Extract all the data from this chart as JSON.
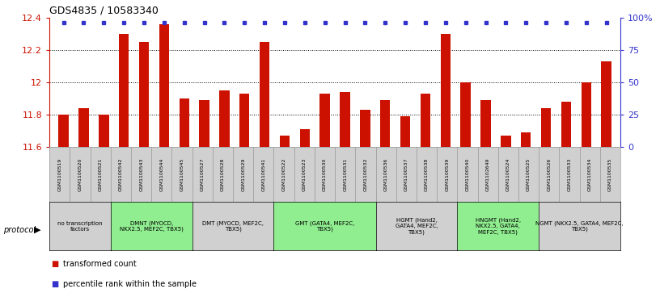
{
  "title": "GDS4835 / 10583340",
  "samples": [
    "GSM1100519",
    "GSM1100520",
    "GSM1100521",
    "GSM1100542",
    "GSM1100543",
    "GSM1100544",
    "GSM1100545",
    "GSM1100527",
    "GSM1100528",
    "GSM1100529",
    "GSM1100541",
    "GSM1100522",
    "GSM1100523",
    "GSM1100530",
    "GSM1100531",
    "GSM1100532",
    "GSM1100536",
    "GSM1100537",
    "GSM1100538",
    "GSM1100539",
    "GSM1100540",
    "GSM1102649",
    "GSM1100524",
    "GSM1100525",
    "GSM1100526",
    "GSM1100533",
    "GSM1100534",
    "GSM1100535"
  ],
  "bar_values": [
    11.8,
    11.84,
    11.8,
    12.3,
    12.25,
    12.36,
    11.9,
    11.89,
    11.95,
    11.93,
    12.25,
    11.67,
    11.71,
    11.93,
    11.94,
    11.83,
    11.89,
    11.79,
    11.93,
    12.3,
    12.0,
    11.89,
    11.67,
    11.69,
    11.84,
    11.88,
    12.0,
    12.13
  ],
  "bar_color": "#cc1100",
  "percentile_color": "#3333cc",
  "ylim": [
    11.6,
    12.4
  ],
  "yticks_left": [
    11.6,
    11.8,
    12.0,
    12.2,
    12.4
  ],
  "ytick_labels_left": [
    "11.6",
    "11.8",
    "12",
    "12.2",
    "12.4"
  ],
  "yticks_right": [
    0,
    25,
    50,
    75,
    100
  ],
  "ytick_labels_right": [
    "0",
    "25",
    "50",
    "75",
    "100%"
  ],
  "gridlines": [
    11.8,
    12.0,
    12.2
  ],
  "protocols": [
    {
      "label": "no transcription\nfactors",
      "start": 0,
      "end": 3,
      "color": "#d0d0d0"
    },
    {
      "label": "DMNT (MYOCD,\nNKX2.5, MEF2C, TBX5)",
      "start": 3,
      "end": 7,
      "color": "#90ee90"
    },
    {
      "label": "DMT (MYOCD, MEF2C,\nTBX5)",
      "start": 7,
      "end": 11,
      "color": "#d0d0d0"
    },
    {
      "label": "GMT (GATA4, MEF2C,\nTBX5)",
      "start": 11,
      "end": 16,
      "color": "#90ee90"
    },
    {
      "label": "HGMT (Hand2,\nGATA4, MEF2C,\nTBX5)",
      "start": 16,
      "end": 20,
      "color": "#d0d0d0"
    },
    {
      "label": "HNGMT (Hand2,\nNKX2.5, GATA4,\nMEF2C, TBX5)",
      "start": 20,
      "end": 24,
      "color": "#90ee90"
    },
    {
      "label": "NGMT (NKX2.5, GATA4, MEF2C,\nTBX5)",
      "start": 24,
      "end": 28,
      "color": "#d0d0d0"
    }
  ],
  "legend": [
    {
      "label": "transformed count",
      "color": "#cc1100"
    },
    {
      "label": "percentile rank within the sample",
      "color": "#3333cc"
    }
  ],
  "protocol_label": "protocol",
  "bg_color": "#ffffff"
}
